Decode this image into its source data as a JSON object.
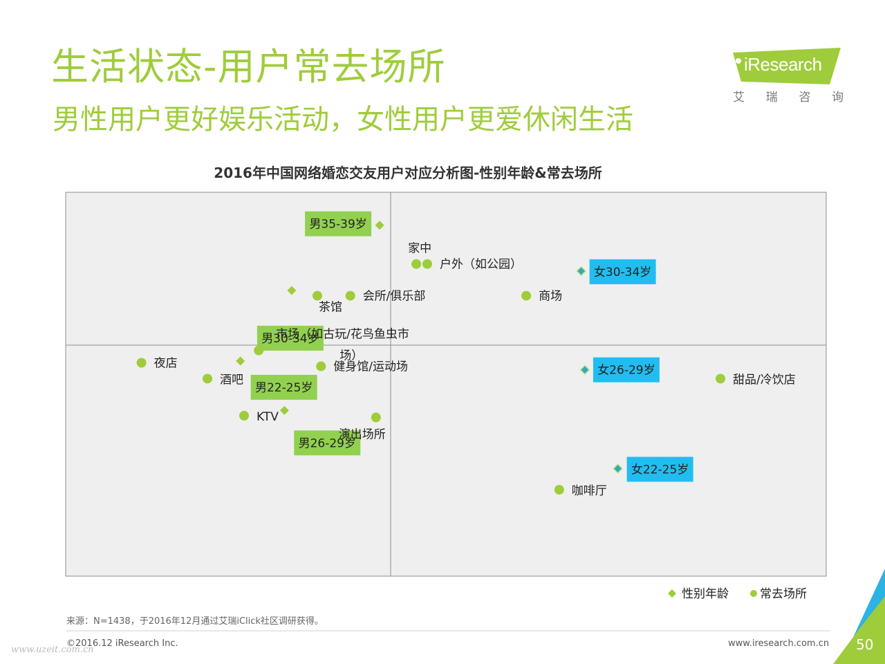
{
  "slide": {
    "title": "生活状态-用户常去场所",
    "subtitle": "男性用户更好娱乐活动，女性用户更爱休闲生活",
    "logo_text": "iResearch",
    "logo_cn": [
      "艾",
      "瑞",
      "咨",
      "询"
    ],
    "source_note": "来源：N=1438，于2016年12月通过艾瑞iClick社区调研获得。",
    "copyright": "©2016.12 iResearch Inc.",
    "website": "www.iresearch.com.cn",
    "page_number": "50",
    "watermark": "www.uzeit.com.cn"
  },
  "colors": {
    "accent_green": "#9fcc3b",
    "male_tag_bg": "#92d050",
    "female_tag_bg": "#22bdf0",
    "female_marker": "#36aab4",
    "plot_bg": "#efefef",
    "triangle_blue": "#2cb3e3"
  },
  "chart_data": {
    "type": "scatter",
    "title": "2016年中国网络婚恋交友用户对应分析图-性别年龄&常去场所",
    "xlabel": "",
    "ylabel": "",
    "xlim": [
      -1.0,
      1.0
    ],
    "ylim": [
      -1.0,
      1.0
    ],
    "grid": false,
    "legend_position": "bottom-right",
    "series": [
      {
        "name": "性别年龄",
        "marker": "diamond",
        "points": [
          {
            "label": "男35-39岁",
            "x": -0.03,
            "y": 0.68,
            "group": "male"
          },
          {
            "label": "男30-34岁",
            "x": -0.27,
            "y": 0.31,
            "group": "male"
          },
          {
            "label": "男22-25岁",
            "x": -0.41,
            "y": -0.09,
            "group": "male"
          },
          {
            "label": "男26-29岁",
            "x": -0.29,
            "y": -0.37,
            "group": "male"
          },
          {
            "label": "女30-34岁",
            "x": 0.52,
            "y": 0.42,
            "group": "female"
          },
          {
            "label": "女26-29岁",
            "x": 0.53,
            "y": -0.14,
            "group": "female"
          },
          {
            "label": "女22-25岁",
            "x": 0.62,
            "y": -0.7,
            "group": "female"
          }
        ]
      },
      {
        "name": "常去场所",
        "marker": "circle",
        "points": [
          {
            "label": "家中",
            "x": 0.07,
            "y": 0.46
          },
          {
            "label": "户外（如公园）",
            "x": 0.1,
            "y": 0.46
          },
          {
            "label": "商场",
            "x": 0.37,
            "y": 0.28
          },
          {
            "label": "茶馆",
            "x": -0.2,
            "y": 0.28
          },
          {
            "label": "会所/俱乐部",
            "x": -0.11,
            "y": 0.28
          },
          {
            "label": "市场（如古玩/花鸟鱼虫市场）",
            "x": -0.36,
            "y": -0.03
          },
          {
            "label": "夜店",
            "x": -0.68,
            "y": -0.1
          },
          {
            "label": "酒吧",
            "x": -0.5,
            "y": -0.19
          },
          {
            "label": "健身馆/运动场",
            "x": -0.19,
            "y": -0.12
          },
          {
            "label": "KTV",
            "x": -0.4,
            "y": -0.4
          },
          {
            "label": "演出场所",
            "x": -0.04,
            "y": -0.41
          },
          {
            "label": "甜品/冷饮店",
            "x": 0.9,
            "y": -0.19
          },
          {
            "label": "咖啡厅",
            "x": 0.46,
            "y": -0.82
          }
        ]
      }
    ]
  }
}
